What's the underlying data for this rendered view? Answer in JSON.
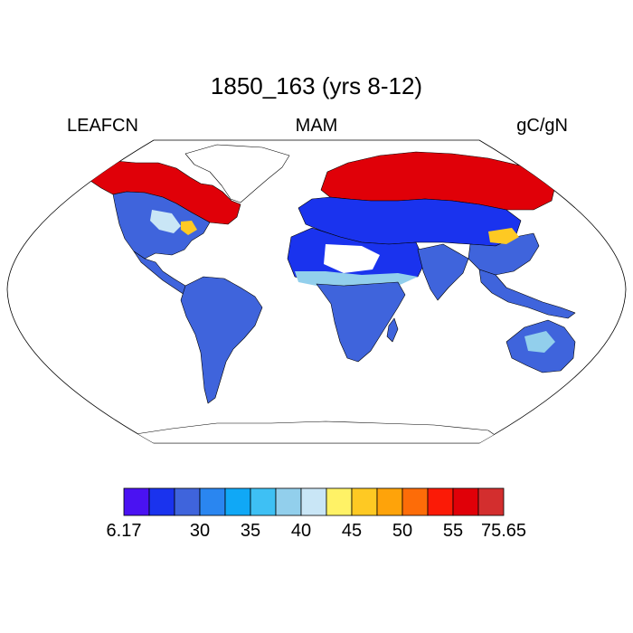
{
  "title": "1850_163 (yrs 8-12)",
  "left_label": "LEAFCN",
  "center_label": "MAM",
  "right_label": "gC/gN",
  "legend": {
    "colors": [
      "#4a12f2",
      "#1a33ee",
      "#3f64dc",
      "#2a86f0",
      "#10a8f6",
      "#3ec0f4",
      "#92cfec",
      "#c9e6f6",
      "#fff266",
      "#fec923",
      "#fea30a",
      "#fd6c08",
      "#fb1a06",
      "#e00008",
      "#d32e2e"
    ],
    "tick_labels": [
      "6.17",
      "30",
      "35",
      "40",
      "45",
      "50",
      "55",
      "75.65"
    ],
    "tick_boundaries": [
      0,
      3,
      5,
      7,
      9,
      11,
      13,
      15
    ]
  },
  "regions": [
    {
      "name": "north-america-north",
      "color": "#e00008"
    },
    {
      "name": "north-america-central",
      "color": "#3f64dc"
    },
    {
      "name": "central-america",
      "color": "#3f64dc"
    },
    {
      "name": "south-america",
      "color": "#3f64dc"
    },
    {
      "name": "europe-siberia",
      "color": "#e00008"
    },
    {
      "name": "eurasia-midlatitude",
      "color": "#1a33ee"
    },
    {
      "name": "east-asia",
      "color": "#3f64dc"
    },
    {
      "name": "sahara",
      "color": "#1a33ee"
    },
    {
      "name": "africa-south",
      "color": "#3f64dc"
    },
    {
      "name": "india",
      "color": "#3f64dc"
    },
    {
      "name": "southeast-asia",
      "color": "#3f64dc"
    },
    {
      "name": "australia",
      "color": "#3f64dc"
    },
    {
      "name": "new-zealand",
      "color": "#3f64dc"
    }
  ]
}
